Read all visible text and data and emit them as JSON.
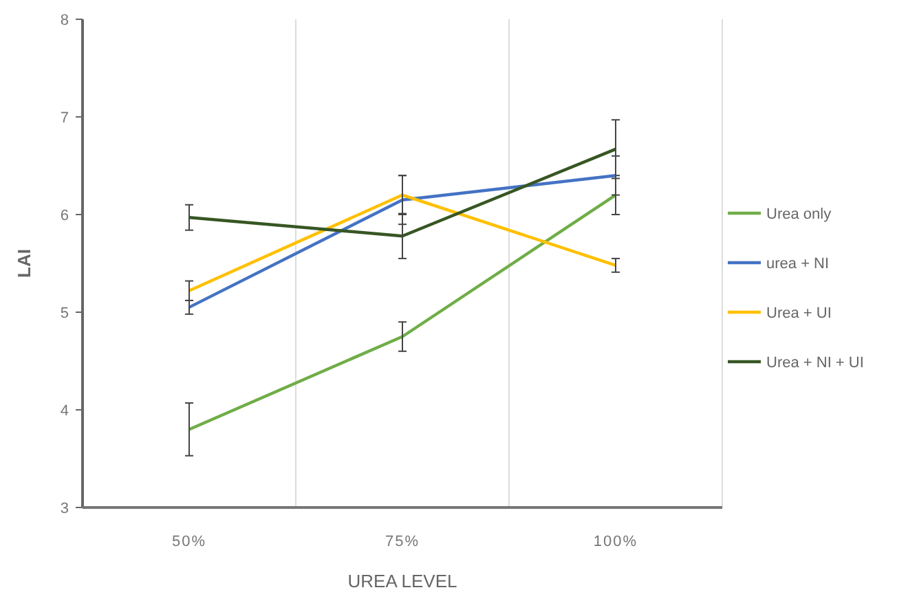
{
  "chart_data": {
    "type": "line",
    "xlabel": "UREA LEVEL",
    "ylabel": "LAI",
    "categories": [
      "50%",
      "75%",
      "100%"
    ],
    "ylim": [
      3,
      8
    ],
    "yticks": [
      3,
      4,
      5,
      6,
      7,
      8
    ],
    "grid": "x",
    "legend": "right",
    "marker": "none",
    "series": [
      {
        "name": "Urea only",
        "color": "#70ad47",
        "values": [
          3.8,
          4.75,
          6.2
        ],
        "errors": [
          0.27,
          0.15,
          0.2
        ]
      },
      {
        "name": "urea + NI",
        "color": "#4472c4",
        "values": [
          5.05,
          6.15,
          6.4
        ],
        "errors": [
          0.07,
          0.25,
          0.2
        ]
      },
      {
        "name": "Urea + UI",
        "color": "#ffc000",
        "values": [
          5.22,
          6.2,
          5.48
        ],
        "errors": [
          0.1,
          0.2,
          0.07
        ]
      },
      {
        "name": "Urea + NI + UI",
        "color": "#375623",
        "values": [
          5.97,
          5.78,
          6.67
        ],
        "errors": [
          0.13,
          0.23,
          0.3
        ]
      }
    ]
  }
}
